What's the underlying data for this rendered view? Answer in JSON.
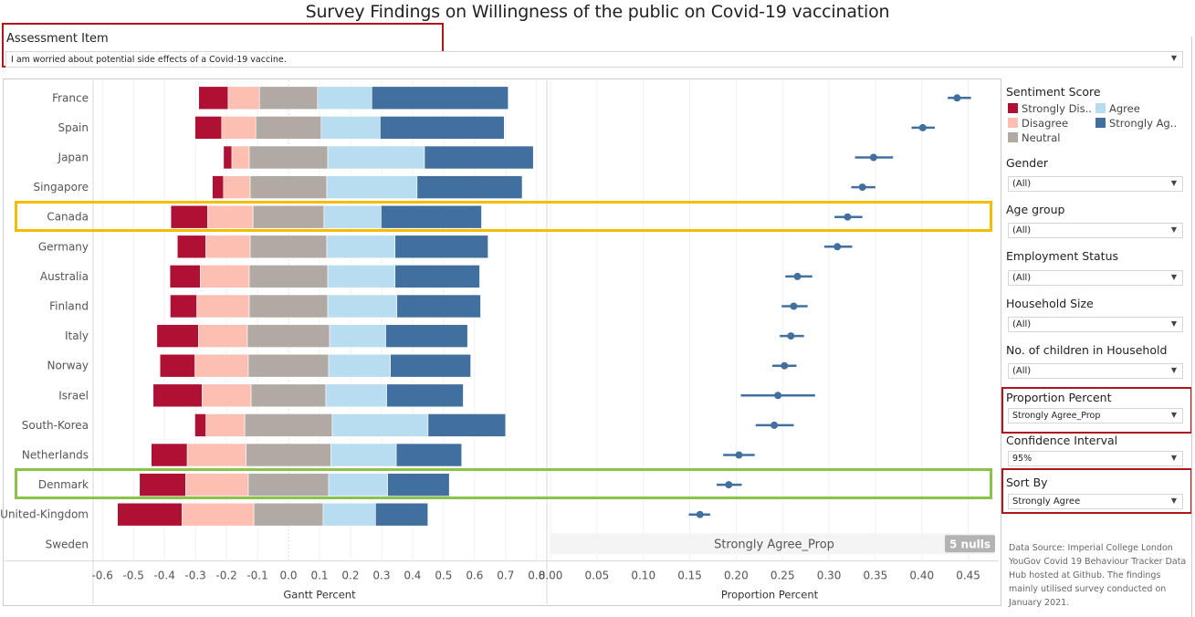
{
  "title": "Survey Findings on Willingness of the public on Covid-19 vaccination",
  "assessment": {
    "label": "Assessment Item",
    "value": "I am worried about potential side effects of a Covid-19 vaccine."
  },
  "legend": {
    "title": "Sentiment Score",
    "items": [
      {
        "label": "Strongly Dis..",
        "color": "#ae1133"
      },
      {
        "label": "Agree",
        "color": "#b9ddf0"
      },
      {
        "label": "Disagree",
        "color": "#fdbfb2"
      },
      {
        "label": "Strongly Ag..",
        "color": "#41709f"
      },
      {
        "label": "Neutral",
        "color": "#b1a9a4"
      }
    ]
  },
  "filters": [
    {
      "label": "Gender",
      "value": "(All)"
    },
    {
      "label": "Age group",
      "value": "(All)"
    },
    {
      "label": "Employment Status",
      "value": "(All)"
    },
    {
      "label": "Household Size",
      "value": "(All)"
    },
    {
      "label": "No. of children in Household",
      "value": "(All)"
    },
    {
      "label": "Proportion Percent",
      "value": "Strongly Agree_Prop"
    },
    {
      "label": "Confidence Interval",
      "value": "95%"
    },
    {
      "label": "Sort By",
      "value": "Strongly Agree"
    }
  ],
  "source_note": "Data Source: Imperial College London YouGov Covid 19 Behaviour Tracker Data Hub hosted at Github. The findings mainly utilised survey conducted on January 2021.",
  "highlights": {
    "canada_color": "#f5bd00",
    "denmark_color": "#8bc34a",
    "filter_highlight_color": "#b0151c"
  },
  "chart_data": [
    {
      "type": "bar",
      "subtype": "diverging-stacked-gantt",
      "title": "",
      "xlabel": "Gantt Percent",
      "ylabel": "",
      "xlim": [
        -0.63,
        0.83
      ],
      "xticks": [
        "-0.6",
        "-0.5",
        "-0.4",
        "-0.3",
        "-0.2",
        "-0.1",
        "0.0",
        "0.1",
        "0.2",
        "0.3",
        "0.4",
        "0.5",
        "0.6",
        "0.7",
        "0.8"
      ],
      "grid": true,
      "categories": [
        "France",
        "Spain",
        "Japan",
        "Singapore",
        "Canada",
        "Germany",
        "Australia",
        "Finland",
        "Italy",
        "Norway",
        "Israel",
        "South-Korea",
        "Netherlands",
        "Denmark",
        "United-Kingdom",
        "Sweden"
      ],
      "series": [
        {
          "name": "Strongly Disagree",
          "color": "#ae1133",
          "values": [
            0.095,
            0.086,
            0.027,
            0.036,
            0.119,
            0.092,
            0.098,
            0.086,
            0.134,
            0.113,
            0.158,
            0.036,
            0.116,
            0.149,
            0.208,
            null
          ]
        },
        {
          "name": "Disagree",
          "color": "#fdbfb2",
          "values": [
            0.101,
            0.11,
            0.056,
            0.086,
            0.146,
            0.143,
            0.158,
            0.169,
            0.158,
            0.172,
            0.158,
            0.125,
            0.19,
            0.202,
            0.232,
            null
          ]
        },
        {
          "name": "Neutral",
          "color": "#b1a9a4",
          "values": [
            0.187,
            0.211,
            0.253,
            0.247,
            0.229,
            0.247,
            0.253,
            0.253,
            0.265,
            0.259,
            0.241,
            0.282,
            0.273,
            0.259,
            0.223,
            null
          ]
        },
        {
          "name": "Agree",
          "color": "#b9ddf0",
          "values": [
            0.175,
            0.19,
            0.312,
            0.291,
            0.184,
            0.22,
            0.217,
            0.223,
            0.181,
            0.199,
            0.196,
            0.309,
            0.211,
            0.19,
            0.169,
            null
          ]
        },
        {
          "name": "Strongly Agree",
          "color": "#41709f",
          "values": [
            0.44,
            0.4,
            0.351,
            0.339,
            0.324,
            0.3,
            0.273,
            0.27,
            0.264,
            0.259,
            0.247,
            0.25,
            0.211,
            0.199,
            0.169,
            null
          ]
        }
      ],
      "neutral_centered_at_zero": true
    },
    {
      "type": "scatter",
      "subtype": "point-with-confidence-interval",
      "title": "",
      "xlabel": "Proportion Percent",
      "xlim": [
        -0.003,
        0.475
      ],
      "xticks": [
        "0.00",
        "0.05",
        "0.10",
        "0.15",
        "0.20",
        "0.25",
        "0.30",
        "0.35",
        "0.40",
        "0.45"
      ],
      "grid": true,
      "color": "#41709f",
      "categories": [
        "France",
        "Spain",
        "Japan",
        "Singapore",
        "Canada",
        "Germany",
        "Australia",
        "Finland",
        "Italy",
        "Norway",
        "Israel",
        "South-Korea",
        "Netherlands",
        "Denmark",
        "United-Kingdom",
        "Sweden"
      ],
      "values": [
        0.438,
        0.401,
        0.348,
        0.336,
        0.32,
        0.309,
        0.266,
        0.262,
        0.259,
        0.252,
        0.245,
        0.241,
        0.203,
        0.192,
        0.161,
        null
      ],
      "ci_low": [
        0.428,
        0.389,
        0.328,
        0.324,
        0.306,
        0.295,
        0.253,
        0.249,
        0.247,
        0.239,
        0.205,
        0.221,
        0.186,
        0.179,
        0.149,
        null
      ],
      "ci_high": [
        0.453,
        0.414,
        0.369,
        0.35,
        0.336,
        0.325,
        0.282,
        0.277,
        0.273,
        0.265,
        0.285,
        0.262,
        0.22,
        0.206,
        0.172,
        null
      ],
      "null_annotation": {
        "field": "Strongly Agree_Prop",
        "badge": "5 nulls"
      }
    }
  ]
}
